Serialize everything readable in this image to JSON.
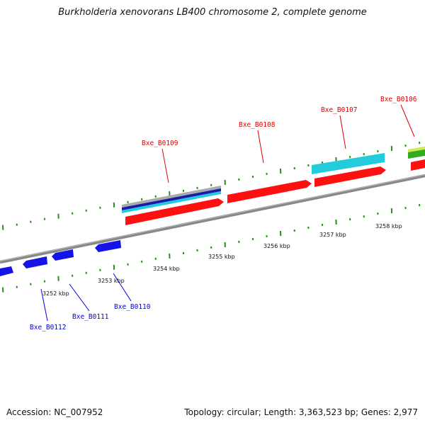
{
  "title": "Burkholderia xenovorans LB400 chromosome 2, complete genome",
  "footer": {
    "accession": "Accession: NC_007952",
    "summary": "Topology: circular; Length: 3,363,523 bp; Genes: 2,977"
  },
  "colors": {
    "backbone": "#888888",
    "ticks": "#2e8b20",
    "cds_forward": "#ff1010",
    "cds_reverse": "#1414e6",
    "label_forward": "#e00000",
    "label_reverse": "#0000dd",
    "feature_cyan": "#22ccdd",
    "feature_green": "#33aa22",
    "feature_lime": "#ccee55",
    "feature_navy": "#1a1aaa",
    "feature_gray": "#aaaaaa"
  },
  "scale_labels": [
    {
      "text": "3252 kbp"
    },
    {
      "text": "3253 kbp"
    },
    {
      "text": "3254 kbp"
    },
    {
      "text": "3255 kbp"
    },
    {
      "text": "3256 kbp"
    },
    {
      "text": "3257 kbp"
    },
    {
      "text": "3258 kbp"
    }
  ],
  "genes_forward": [
    {
      "name": "Bxe_B0109"
    },
    {
      "name": "Bxe_B0108"
    },
    {
      "name": "Bxe_B0107"
    },
    {
      "name": "Bxe_B0106"
    }
  ],
  "genes_reverse": [
    {
      "name": "Bxe_B0112"
    },
    {
      "name": "Bxe_B0111"
    },
    {
      "name": "Bxe_B0110"
    }
  ]
}
